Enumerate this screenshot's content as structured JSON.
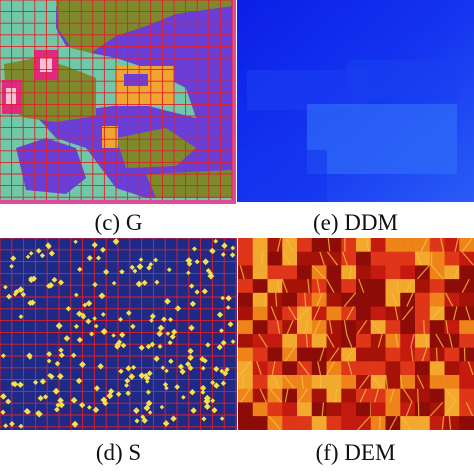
{
  "figure": {
    "panels": [
      {
        "id": "g",
        "caption": "(c) G"
      },
      {
        "id": "ddm",
        "caption": "(e) DDM"
      },
      {
        "id": "s",
        "caption": "(d) S"
      },
      {
        "id": "dem",
        "caption": "(f) DEM"
      }
    ]
  },
  "colors": {
    "grid_line": "#e0202a",
    "g_teal": "#6fc9a8",
    "g_purple": "#6a3fd8",
    "g_olive": "#7c8a2c",
    "g_orange": "#f0a432",
    "g_magenta": "#e02a7c",
    "ddm_blue": "#1230ee",
    "s_background": "#1f2a86",
    "s_marker": "#f7e04a",
    "dem_red": "#c41a10",
    "dem_orange": "#f08a1a"
  }
}
